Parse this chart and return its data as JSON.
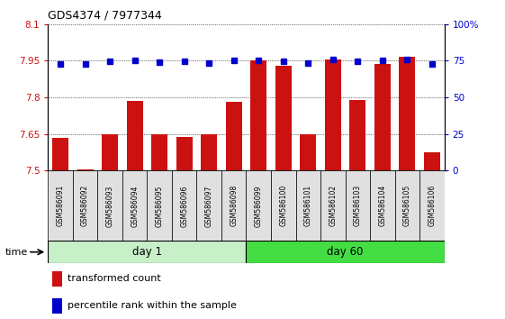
{
  "title": "GDS4374 / 7977344",
  "samples": [
    "GSM586091",
    "GSM586092",
    "GSM586093",
    "GSM586094",
    "GSM586095",
    "GSM586096",
    "GSM586097",
    "GSM586098",
    "GSM586099",
    "GSM586100",
    "GSM586101",
    "GSM586102",
    "GSM586103",
    "GSM586104",
    "GSM586105",
    "GSM586106"
  ],
  "bar_values": [
    7.635,
    7.505,
    7.65,
    7.785,
    7.65,
    7.638,
    7.65,
    7.78,
    7.95,
    7.93,
    7.65,
    7.955,
    7.79,
    7.935,
    7.965,
    7.575
  ],
  "blue_values": [
    73.0,
    72.5,
    74.5,
    75.0,
    74.0,
    74.5,
    73.5,
    75.0,
    75.0,
    74.5,
    73.5,
    76.0,
    74.5,
    75.0,
    75.5,
    73.0
  ],
  "groups": [
    {
      "label": "day 1",
      "start": 0,
      "end": 8
    },
    {
      "label": "day 60",
      "start": 8,
      "end": 16
    }
  ],
  "group_colors": [
    "#c8f0c8",
    "#44dd44"
  ],
  "ylim_left": [
    7.5,
    8.1
  ],
  "ylim_right": [
    0,
    100
  ],
  "yticks_left": [
    7.5,
    7.65,
    7.8,
    7.95,
    8.1
  ],
  "ytick_labels_left": [
    "7.5",
    "7.65",
    "7.8",
    "7.95",
    "8.1"
  ],
  "yticks_right": [
    0,
    25,
    50,
    75,
    100
  ],
  "ytick_labels_right": [
    "0",
    "25",
    "50",
    "75",
    "100%"
  ],
  "bar_color": "#cc1111",
  "dot_color": "#0000cc",
  "bg_color": "#ffffff",
  "legend_labels": [
    "transformed count",
    "percentile rank within the sample"
  ],
  "legend_colors": [
    "#cc1111",
    "#0000cc"
  ],
  "time_label": "time",
  "bar_width": 0.65
}
